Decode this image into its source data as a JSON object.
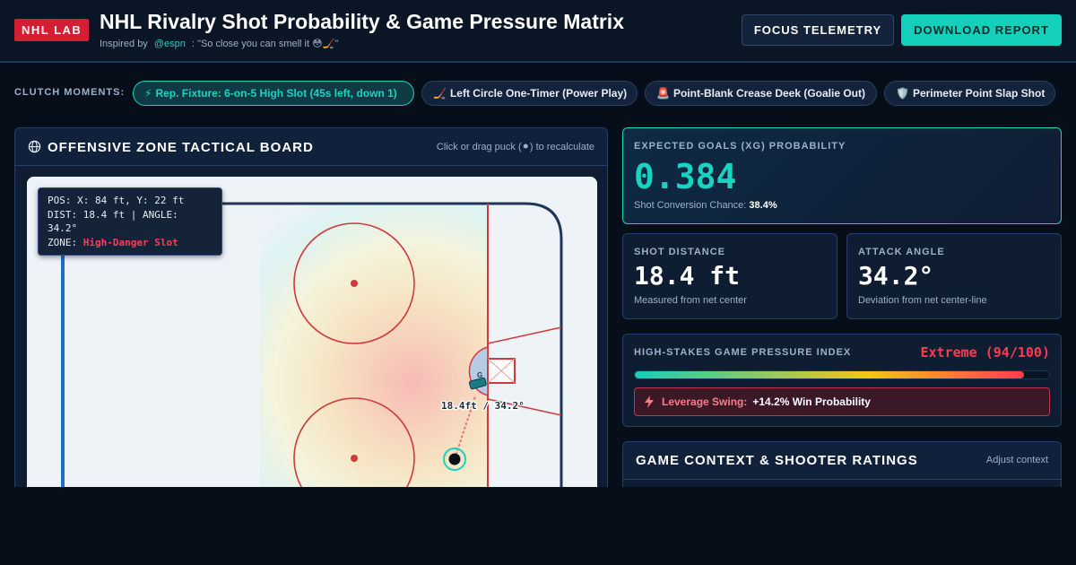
{
  "header": {
    "logo": "NHL LAB",
    "title": "NHL Rivalry Shot Probability & Game Pressure Matrix",
    "inspired_prefix": "Inspired by",
    "handle": "@espn",
    "quote": ": \"So close you can smell it 😳🏒\"",
    "focus_button": "FOCUS TELEMETRY",
    "download_button": "DOWNLOAD REPORT"
  },
  "clutch": {
    "label": "CLUTCH MOMENTS:",
    "moments": [
      {
        "icon": "⚡",
        "label": "Rep. Fixture: 6-on-5 High Slot (45s left, down 1)",
        "active": true
      },
      {
        "icon": "🏒",
        "label": "Left Circle One-Timer (Power Play)",
        "active": false
      },
      {
        "icon": "🚨",
        "label": "Point-Blank Crease Deek (Goalie Out)",
        "active": false
      },
      {
        "icon": "🛡️",
        "label": "Perimeter Point Slap Shot",
        "active": false
      }
    ]
  },
  "board": {
    "title": "OFFENSIVE ZONE TACTICAL BOARD",
    "hint": "Click or drag puck (⚫) to recalculate",
    "readout": {
      "pos": "POS: X: 84 ft, Y: 22 ft",
      "dist_angle": "DIST: 18.4 ft | ANGLE: 34.2°",
      "zone_label": "ZONE:",
      "zone_value": "High-Danger Slot"
    },
    "shot_label": "18.4ft / 34.2°",
    "goalie_label": "G"
  },
  "xg": {
    "label": "EXPECTED GOALS (XG) PROBABILITY",
    "value": "0.384",
    "sub_label": "Shot Conversion Chance:",
    "sub_value": "38.4%"
  },
  "distance": {
    "label": "SHOT DISTANCE",
    "value": "18.4 ft",
    "sub": "Measured from net center"
  },
  "angle": {
    "label": "ATTACK ANGLE",
    "value": "34.2°",
    "sub": "Deviation from net center-line"
  },
  "pressure": {
    "label": "HIGH-STAKES GAME PRESSURE INDEX",
    "value": "Extreme (94/100)",
    "level": 0.94,
    "leverage_label": "Leverage Swing:",
    "leverage_value": "+14.2% Win Probability"
  },
  "context": {
    "title": "GAME CONTEXT & SHOOTER RATINGS",
    "adjust": "Adjust context"
  },
  "colors": {
    "accent": "#19d3c0",
    "danger": "#ff3b4e",
    "background": "#060e1a",
    "panel": "#0f1d33"
  }
}
